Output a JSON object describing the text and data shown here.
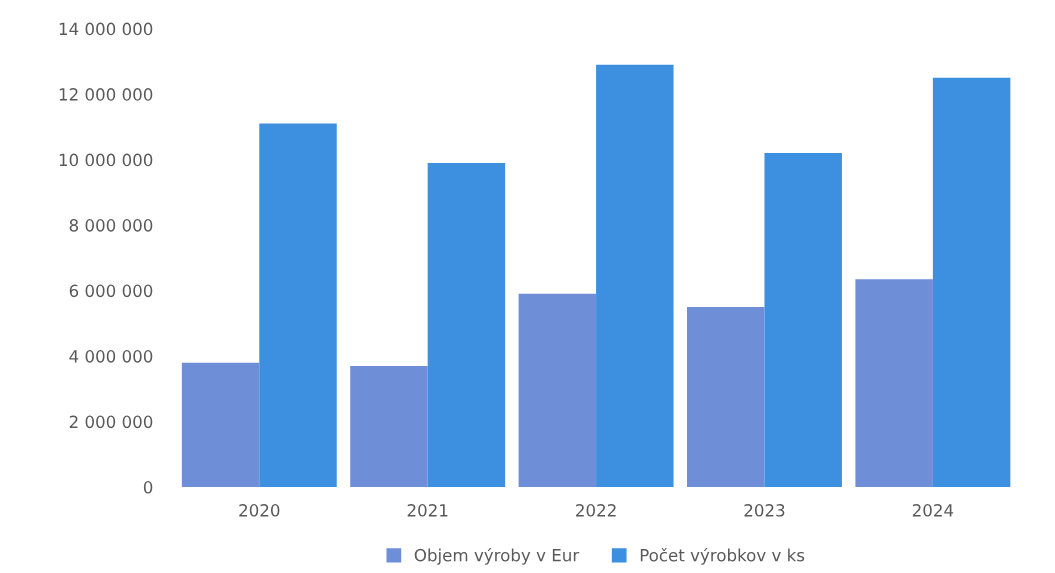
{
  "chart_data": {
    "type": "bar",
    "categories": [
      "2020",
      "2021",
      "2022",
      "2023",
      "2024"
    ],
    "series": [
      {
        "name": "Objem výroby v Eur",
        "color": "#6e8ed8",
        "values": [
          3800000,
          3700000,
          5900000,
          5500000,
          6350000
        ]
      },
      {
        "name": "Počet výrobkov v ks",
        "color": "#3d8fe0",
        "values": [
          11100000,
          9900000,
          12900000,
          10200000,
          12500000
        ]
      }
    ],
    "ylim": [
      0,
      14000000
    ],
    "yticks": [
      {
        "value": 0,
        "label": "0"
      },
      {
        "value": 2000000,
        "label": "2 000 000"
      },
      {
        "value": 4000000,
        "label": "4 000 000"
      },
      {
        "value": 6000000,
        "label": "6 000 000"
      },
      {
        "value": 8000000,
        "label": "8 000 000"
      },
      {
        "value": 10000000,
        "label": "10 000 000"
      },
      {
        "value": 12000000,
        "label": "12 000 000"
      },
      {
        "value": 14000000,
        "label": "14 000 000"
      }
    ],
    "grid": false,
    "legend": "bottom"
  }
}
